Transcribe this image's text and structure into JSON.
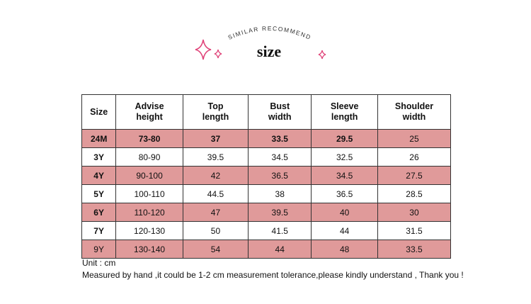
{
  "header": {
    "arc_text": "SIMILAR RECOMMEND",
    "title": "size"
  },
  "table": {
    "columns": [
      "Size",
      "Advise height",
      "Top length",
      "Bust width",
      "Sleeve length",
      "Shoulder width"
    ],
    "rows": [
      [
        "24M",
        "73-80",
        37,
        33.5,
        29.5,
        25
      ],
      [
        "3Y",
        "80-90",
        39.5,
        34.5,
        32.5,
        26
      ],
      [
        "4Y",
        "90-100",
        42,
        36.5,
        34.5,
        27.5
      ],
      [
        "5Y",
        "100-110",
        44.5,
        38,
        36.5,
        28.5
      ],
      [
        "6Y",
        "110-120",
        47,
        39.5,
        40,
        30
      ],
      [
        "7Y",
        "120-130",
        50,
        41.5,
        44,
        31.5
      ],
      [
        "9Y",
        "130-140",
        54,
        44,
        48,
        33.5
      ]
    ]
  },
  "notes": {
    "unit": "Unit : cm",
    "disclaimer": "Measured by hand ,it could be 1-2 cm measurement tolerance,please kindly understand , Thank you !"
  }
}
